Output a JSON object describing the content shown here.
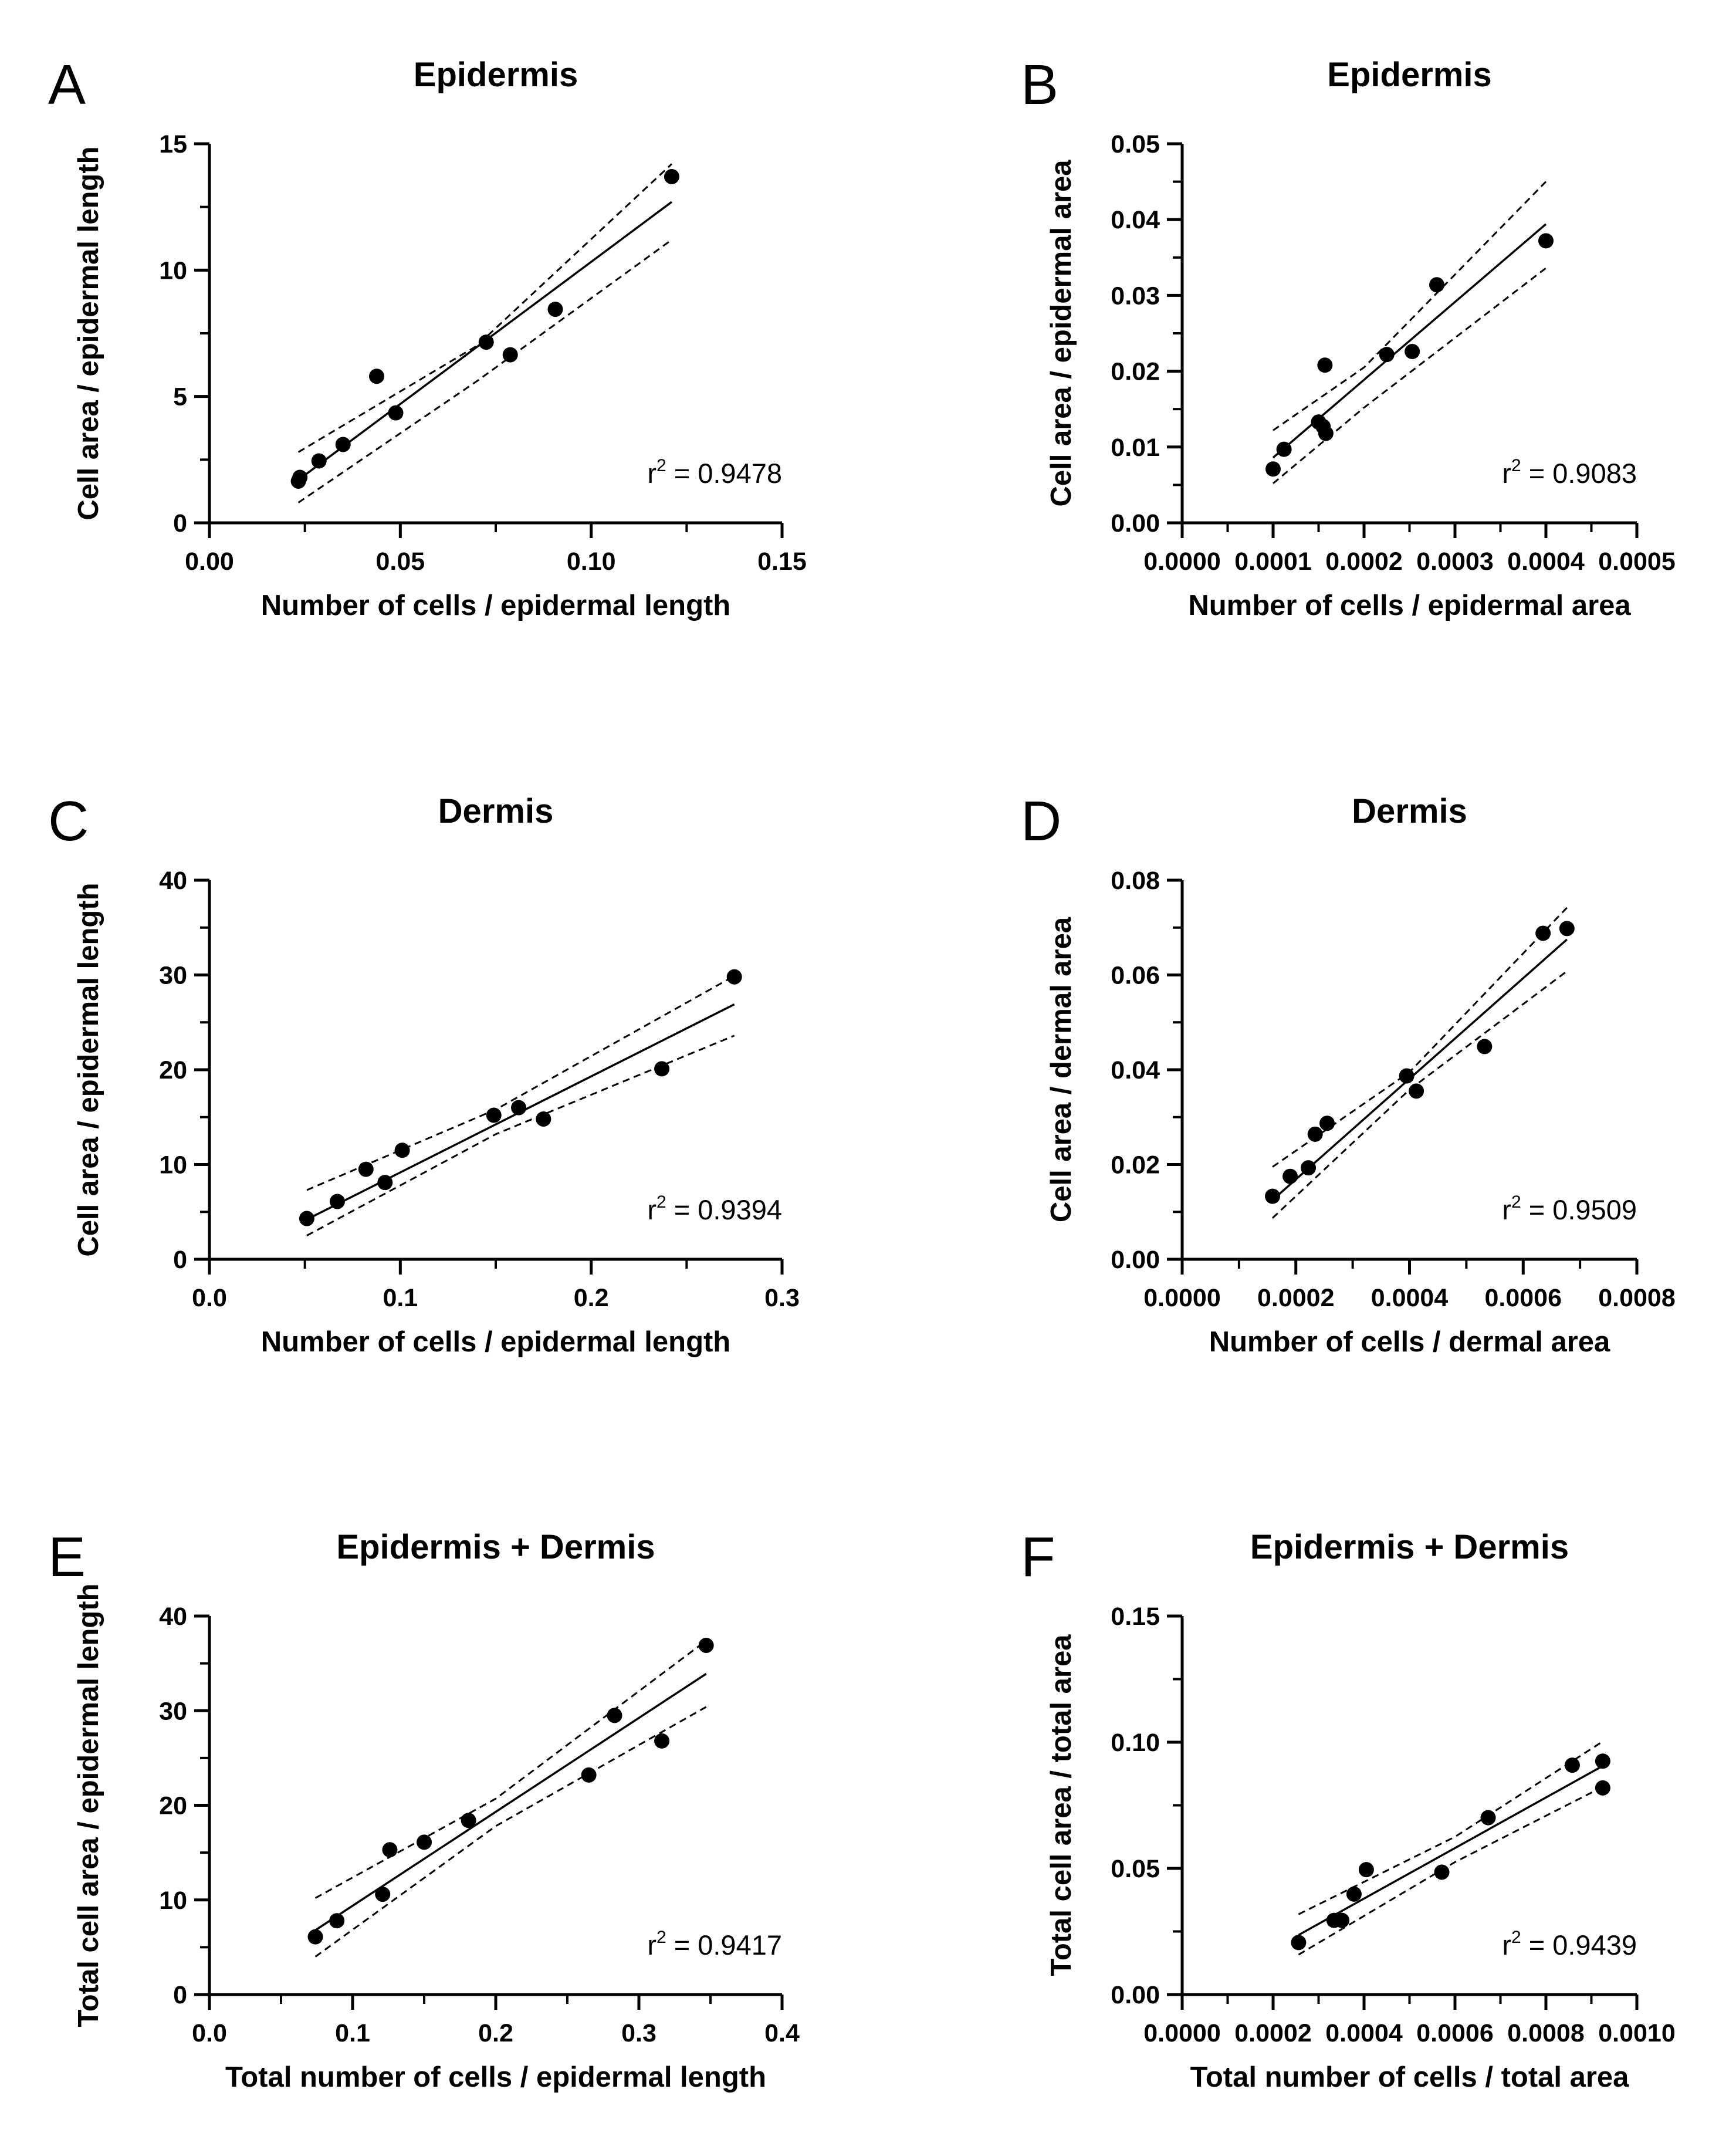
{
  "chart_data": [
    {
      "panel": "A",
      "type": "scatter",
      "title": "Epidermis",
      "xlabel": "Number of cells / epidermal length",
      "ylabel": "Cell area / epidermal length",
      "xlim": [
        0,
        0.15
      ],
      "ylim": [
        0,
        15
      ],
      "xticks": [
        "0.00",
        "0.05",
        "0.10",
        "0.15"
      ],
      "yticks": [
        "0",
        "5",
        "10",
        "15"
      ],
      "x": [
        0.0233,
        0.0237,
        0.0287,
        0.035,
        0.0438,
        0.0488,
        0.0725,
        0.0788,
        0.0906,
        0.1211
      ],
      "y": [
        1.65,
        1.8,
        2.45,
        3.1,
        5.8,
        4.35,
        7.15,
        6.65,
        8.45,
        13.7
      ],
      "fit": {
        "x": [
          0.0233,
          0.1211
        ],
        "y": [
          1.7,
          12.7
        ]
      },
      "ci_upper": {
        "x": [
          0.0233,
          0.07,
          0.1211
        ],
        "y": [
          2.8,
          7.0,
          14.2
        ]
      },
      "ci_lower": {
        "x": [
          0.0233,
          0.07,
          0.1211
        ],
        "y": [
          0.8,
          5.6,
          11.2
        ]
      },
      "r2_prefix": "r",
      "r2_sup": "2",
      "r2_value": " = 0.9478"
    },
    {
      "panel": "B",
      "type": "scatter",
      "title": "Epidermis",
      "xlabel": "Number of cells / epidermal area",
      "ylabel": "Cell area / epidermal area",
      "xlim": [
        0,
        0.0005
      ],
      "ylim": [
        0,
        0.05
      ],
      "xticks": [
        "0.0000",
        "0.0001",
        "0.0002",
        "0.0003",
        "0.0004",
        "0.0005"
      ],
      "yticks": [
        "0.00",
        "0.01",
        "0.02",
        "0.03",
        "0.04",
        "0.05"
      ],
      "x": [
        0.0001,
        0.000112,
        0.00015,
        0.000155,
        0.000157,
        0.000158,
        0.000225,
        0.000253,
        0.00028,
        0.0004
      ],
      "y": [
        0.0071,
        0.0097,
        0.0133,
        0.0127,
        0.0208,
        0.0118,
        0.0222,
        0.0226,
        0.0314,
        0.0372
      ],
      "fit": {
        "x": [
          0.0001,
          0.0004
        ],
        "y": [
          0.0086,
          0.0394
        ]
      },
      "ci_upper": {
        "x": [
          0.0001,
          0.0002,
          0.0004
        ],
        "y": [
          0.0122,
          0.0205,
          0.045
        ]
      },
      "ci_lower": {
        "x": [
          0.0001,
          0.0002,
          0.0004
        ],
        "y": [
          0.0052,
          0.0152,
          0.0336
        ]
      },
      "r2_prefix": "r",
      "r2_sup": "2",
      "r2_value": " = 0.9083"
    },
    {
      "panel": "C",
      "type": "scatter",
      "title": "Dermis",
      "xlabel": "Number of cells / epidermal length",
      "ylabel": "Cell area / epidermal length",
      "xlim": [
        0,
        0.3
      ],
      "ylim": [
        0,
        40
      ],
      "xticks": [
        "0.0",
        "0.1",
        "0.2",
        "0.3"
      ],
      "yticks": [
        "0",
        "10",
        "20",
        "30",
        "40"
      ],
      "x": [
        0.051,
        0.067,
        0.082,
        0.092,
        0.101,
        0.149,
        0.162,
        0.175,
        0.237,
        0.275
      ],
      "y": [
        4.3,
        6.1,
        9.5,
        8.1,
        11.5,
        15.2,
        16.0,
        14.8,
        20.1,
        29.8
      ],
      "fit": {
        "x": [
          0.051,
          0.275
        ],
        "y": [
          4.2,
          26.9
        ]
      },
      "ci_upper": {
        "x": [
          0.051,
          0.15,
          0.275
        ],
        "y": [
          7.3,
          15.8,
          29.9
        ]
      },
      "ci_lower": {
        "x": [
          0.051,
          0.15,
          0.275
        ],
        "y": [
          2.5,
          13.2,
          23.6
        ]
      },
      "r2_prefix": "r",
      "r2_sup": "2",
      "r2_value": " = 0.9394"
    },
    {
      "panel": "D",
      "type": "scatter",
      "title": "Dermis",
      "xlabel": "Number of cells / dermal area",
      "ylabel": "Cell area / dermal area",
      "xlim": [
        0,
        0.0008
      ],
      "ylim": [
        0,
        0.08
      ],
      "xticks": [
        "0.0000",
        "0.0002",
        "0.0004",
        "0.0006",
        "0.0008"
      ],
      "yticks": [
        "0.00",
        "0.02",
        "0.04",
        "0.06",
        "0.08"
      ],
      "x": [
        0.000159,
        0.00019,
        0.000222,
        0.000234,
        0.000255,
        0.000395,
        0.000412,
        0.000532,
        0.000635,
        0.000677
      ],
      "y": [
        0.0133,
        0.0175,
        0.0193,
        0.0264,
        0.0287,
        0.0387,
        0.0355,
        0.0449,
        0.0688,
        0.0698
      ],
      "fit": {
        "x": [
          0.000159,
          0.000677
        ],
        "y": [
          0.0125,
          0.0675
        ]
      },
      "ci_upper": {
        "x": [
          0.000159,
          0.0004,
          0.000677
        ],
        "y": [
          0.0195,
          0.0395,
          0.0742
        ]
      },
      "ci_lower": {
        "x": [
          0.000159,
          0.0004,
          0.000677
        ],
        "y": [
          0.0087,
          0.0358,
          0.0608
        ]
      },
      "r2_prefix": "r",
      "r2_sup": "2",
      "r2_value": " = 0.9509"
    },
    {
      "panel": "E",
      "type": "scatter",
      "title": "Epidermis + Dermis",
      "xlabel": "Total number of cells / epidermal length",
      "ylabel": "Total cell area / epidermal length",
      "xlim": [
        0,
        0.4
      ],
      "ylim": [
        0,
        40
      ],
      "xticks": [
        "0.0",
        "0.1",
        "0.2",
        "0.3",
        "0.4"
      ],
      "yticks": [
        "0",
        "10",
        "20",
        "30",
        "40"
      ],
      "x": [
        0.074,
        0.089,
        0.121,
        0.126,
        0.15,
        0.181,
        0.265,
        0.283,
        0.316,
        0.347
      ],
      "y": [
        6.1,
        7.8,
        10.6,
        15.3,
        16.1,
        18.4,
        23.2,
        29.5,
        26.8,
        36.9
      ],
      "fit": {
        "x": [
          0.074,
          0.347
        ],
        "y": [
          6.8,
          33.9
        ]
      },
      "ci_upper": {
        "x": [
          0.074,
          0.2,
          0.347
        ],
        "y": [
          10.2,
          20.7,
          37.4
        ]
      },
      "ci_lower": {
        "x": [
          0.074,
          0.2,
          0.347
        ],
        "y": [
          4.0,
          17.8,
          30.4
        ]
      },
      "r2_prefix": "r",
      "r2_sup": "2",
      "r2_value": " = 0.9417"
    },
    {
      "panel": "F",
      "type": "scatter",
      "title": "Epidermis + Dermis",
      "xlabel": "Total number of cells / total area",
      "ylabel": "Total cell area / total area",
      "xlim": [
        0,
        0.001
      ],
      "ylim": [
        0,
        0.15
      ],
      "xticks": [
        "0.0000",
        "0.0002",
        "0.0004",
        "0.0006",
        "0.0008",
        "0.0010"
      ],
      "yticks": [
        "0.00",
        "0.05",
        "0.10",
        "0.15"
      ],
      "x": [
        0.000256,
        0.000334,
        0.000351,
        0.000378,
        0.000405,
        0.000571,
        0.000673,
        0.000858,
        0.000925,
        0.000925
      ],
      "y": [
        0.0206,
        0.0294,
        0.0294,
        0.0398,
        0.0495,
        0.0485,
        0.0701,
        0.0909,
        0.0925,
        0.0819
      ],
      "fit": {
        "x": [
          0.000256,
          0.000925
        ],
        "y": [
          0.0236,
          0.0906
        ]
      },
      "ci_upper": {
        "x": [
          0.000256,
          0.0006,
          0.000925
        ],
        "y": [
          0.0318,
          0.0625,
          0.1003
        ]
      },
      "ci_lower": {
        "x": [
          0.000256,
          0.0006,
          0.000925
        ],
        "y": [
          0.0158,
          0.0525,
          0.0823
        ]
      },
      "r2_prefix": "r",
      "r2_sup": "2",
      "r2_value": " = 0.9439"
    }
  ]
}
